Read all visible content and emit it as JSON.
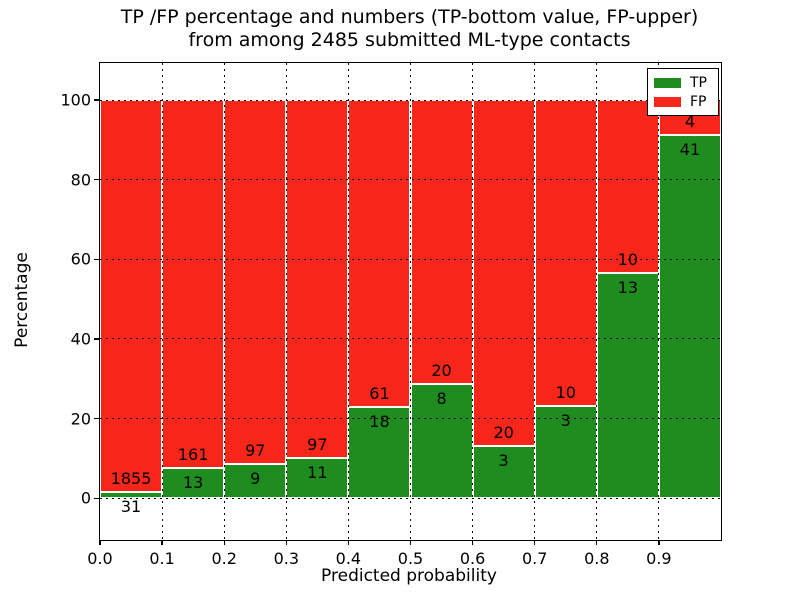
{
  "title": {
    "line1": "TP /FP percentage and numbers (TP-bottom value, FP-upper)",
    "line2": "from among 2485 submitted ML-type contacts"
  },
  "chart_data": {
    "type": "bar",
    "stacked": true,
    "normalized_to_percent": 100,
    "title": "TP /FP percentage and numbers (TP-bottom value, FP-upper) from among 2485 submitted ML-type contacts",
    "xlabel": "Predicted probability",
    "ylabel": "Percentage",
    "total_contacts": 2485,
    "bin_width": 0.1,
    "bin_starts": [
      0.0,
      0.1,
      0.2,
      0.3,
      0.4,
      0.5,
      0.6,
      0.7,
      0.8,
      0.9
    ],
    "xtick_labels": [
      "0.0",
      "0.1",
      "0.2",
      "0.3",
      "0.4",
      "0.5",
      "0.6",
      "0.7",
      "0.8",
      "0.9"
    ],
    "ytick_values": [
      0,
      20,
      40,
      60,
      80,
      100
    ],
    "xlim": [
      0.0,
      1.0
    ],
    "ylim": [
      -10.5,
      109.3
    ],
    "grid": "dotted, both axes, drawn over bars",
    "legend_position": "upper right",
    "series": [
      {
        "name": "TP",
        "color": "#1e8c1e",
        "counts": [
          31,
          13,
          9,
          11,
          18,
          8,
          3,
          3,
          13,
          41
        ],
        "percent": [
          1.64,
          7.47,
          8.49,
          10.19,
          22.78,
          28.57,
          13.04,
          23.08,
          56.52,
          91.11
        ]
      },
      {
        "name": "FP",
        "color": "#f7261b",
        "counts": [
          1855,
          161,
          97,
          97,
          61,
          20,
          20,
          10,
          10,
          4
        ],
        "percent": [
          98.36,
          92.53,
          91.51,
          89.81,
          77.22,
          71.43,
          86.96,
          76.92,
          43.48,
          8.89
        ]
      }
    ],
    "annotation_note": "FP count printed just above the TP/FP boundary, TP count just below it; bar edges are white"
  }
}
